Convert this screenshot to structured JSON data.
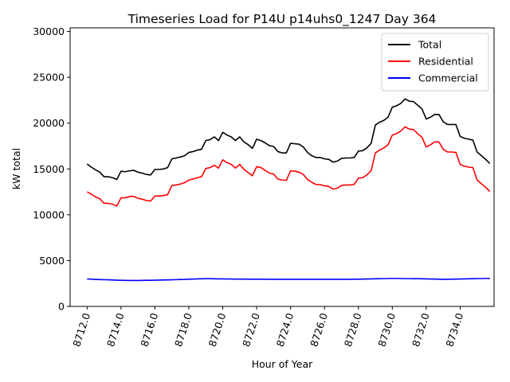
{
  "chart_data": {
    "type": "line",
    "title": "Timeseries Load for P14U p14uhs0_1247  Day 364",
    "xlabel": "Hour of Year",
    "ylabel": "kW total",
    "xlim": [
      8711.0,
      8736.0
    ],
    "ylim": [
      0,
      30400
    ],
    "x_ticks": [
      8712,
      8714,
      8716,
      8718,
      8720,
      8722,
      8724,
      8726,
      8728,
      8730,
      8732,
      8734
    ],
    "x_tick_labels": [
      "8712.0",
      "8714.0",
      "8716.0",
      "8718.0",
      "8720.0",
      "8722.0",
      "8724.0",
      "8726.0",
      "8728.0",
      "8730.0",
      "8732.0",
      "8734.0"
    ],
    "y_ticks": [
      0,
      5000,
      10000,
      15000,
      20000,
      25000,
      30000
    ],
    "y_tick_labels": [
      "0",
      "5000",
      "10000",
      "15000",
      "20000",
      "25000",
      "30000"
    ],
    "legend_position": "top-right",
    "grid": false,
    "x_start": 8712.0,
    "x_step": 0.25,
    "series": [
      {
        "name": "Total",
        "color": "#000000",
        "values": [
          15550,
          15200,
          14900,
          14650,
          14150,
          14150,
          14050,
          13850,
          14750,
          14700,
          14800,
          14850,
          14650,
          14550,
          14400,
          14350,
          14950,
          14950,
          15000,
          15150,
          16100,
          16200,
          16300,
          16450,
          16800,
          16900,
          17050,
          17150,
          18100,
          18200,
          18500,
          18100,
          19000,
          18700,
          18500,
          18100,
          18500,
          17950,
          17650,
          17250,
          18250,
          18100,
          17850,
          17550,
          17450,
          16900,
          16750,
          16750,
          17800,
          17750,
          17700,
          17400,
          16800,
          16450,
          16250,
          16250,
          16100,
          16050,
          15750,
          15850,
          16150,
          16200,
          16200,
          16250,
          16950,
          17000,
          17300,
          17800,
          19800,
          20100,
          20300,
          20650,
          21750,
          21900,
          22150,
          22650,
          22400,
          22350,
          21950,
          21550,
          20450,
          20650,
          20950,
          20950,
          20150,
          19850,
          19850,
          19850,
          18550,
          18350,
          18250,
          18150,
          16850,
          16450,
          16050,
          15600
        ]
      },
      {
        "name": "Residential",
        "color": "#ff0000",
        "values": [
          12500,
          12250,
          11950,
          11750,
          11250,
          11250,
          11150,
          10950,
          11850,
          11850,
          12000,
          12000,
          11800,
          11700,
          11550,
          11500,
          12050,
          12050,
          12100,
          12200,
          13200,
          13250,
          13350,
          13500,
          13800,
          13900,
          14050,
          14150,
          15050,
          15150,
          15400,
          15100,
          16000,
          15700,
          15500,
          15100,
          15500,
          14950,
          14600,
          14250,
          15250,
          15150,
          14850,
          14550,
          14450,
          13900,
          13800,
          13750,
          14800,
          14750,
          14650,
          14400,
          13850,
          13550,
          13300,
          13300,
          13150,
          13100,
          12800,
          12900,
          13200,
          13250,
          13250,
          13300,
          14000,
          14050,
          14350,
          14800,
          16750,
          17050,
          17300,
          17650,
          18700,
          18850,
          19150,
          19600,
          19350,
          19300,
          18850,
          18450,
          17400,
          17650,
          17950,
          17950,
          17150,
          16850,
          16850,
          16800,
          15500,
          15300,
          15200,
          15150,
          13800,
          13400,
          13000,
          12550
        ]
      },
      {
        "name": "Commercial",
        "color": "#0000ff",
        "values": [
          3000,
          2970,
          2950,
          2930,
          2910,
          2900,
          2880,
          2860,
          2850,
          2840,
          2830,
          2830,
          2830,
          2840,
          2850,
          2850,
          2860,
          2870,
          2880,
          2890,
          2900,
          2920,
          2940,
          2950,
          2970,
          2980,
          3000,
          3010,
          3020,
          3020,
          3010,
          3000,
          3000,
          2990,
          2990,
          2980,
          2980,
          2980,
          2970,
          2970,
          2970,
          2970,
          2970,
          2960,
          2960,
          2960,
          2960,
          2960,
          2960,
          2960,
          2960,
          2960,
          2960,
          2960,
          2960,
          2960,
          2960,
          2960,
          2960,
          2960,
          2960,
          2960,
          2960,
          2970,
          2970,
          2980,
          2990,
          3000,
          3010,
          3020,
          3030,
          3040,
          3050,
          3050,
          3040,
          3030,
          3030,
          3020,
          3020,
          3010,
          3000,
          2990,
          2980,
          2970,
          2960,
          2960,
          2970,
          2980,
          2990,
          3000,
          3010,
          3020,
          3030,
          3040,
          3050,
          3060
        ]
      }
    ]
  }
}
